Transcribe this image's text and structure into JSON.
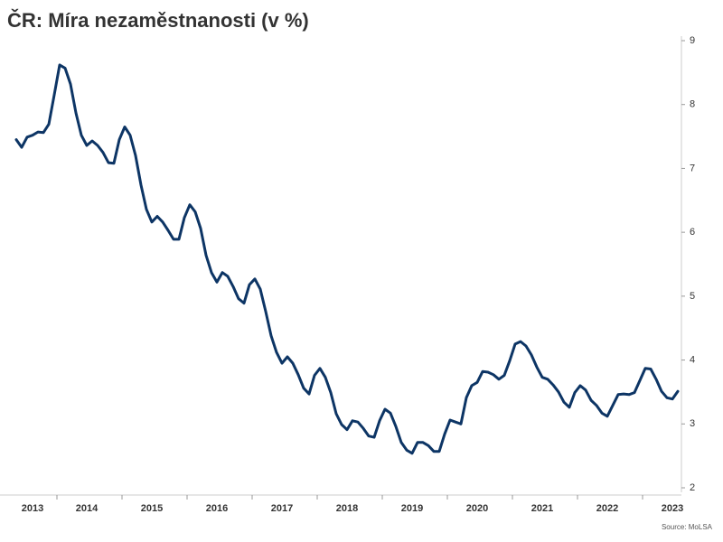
{
  "chart_data": {
    "type": "line",
    "title": "ČR: Míra nezaměstnanosti (v %)",
    "source": "Source: MoLSA",
    "categories": [
      null,
      null,
      null,
      "2013",
      null,
      null,
      null,
      null,
      null,
      null,
      null,
      null,
      null,
      "2014",
      null,
      null,
      null,
      null,
      null,
      null,
      null,
      null,
      null,
      null,
      null,
      "2015",
      null,
      null,
      null,
      null,
      null,
      null,
      null,
      null,
      null,
      null,
      null,
      "2016",
      null,
      null,
      null,
      null,
      null,
      null,
      null,
      null,
      null,
      null,
      null,
      "2017",
      null,
      null,
      null,
      null,
      null,
      null,
      null,
      null,
      null,
      null,
      null,
      "2018",
      null,
      null,
      null,
      null,
      null,
      null,
      null,
      null,
      null,
      null,
      null,
      "2019",
      null,
      null,
      null,
      null,
      null,
      null,
      null,
      null,
      null,
      null,
      null,
      "2020",
      null,
      null,
      null,
      null,
      null,
      null,
      null,
      null,
      null,
      null,
      null,
      "2021",
      null,
      null,
      null,
      null,
      null,
      null,
      null,
      null,
      null,
      null,
      null,
      "2022",
      null,
      null,
      null,
      null,
      null,
      null,
      null,
      null,
      null,
      null,
      null,
      "2023",
      null
    ],
    "series": [
      {
        "name": "Míra nezaměstnanosti",
        "color": "#0d3565",
        "values": [
          7.45,
          7.33,
          7.49,
          7.52,
          7.57,
          7.56,
          7.69,
          8.15,
          8.62,
          8.57,
          8.32,
          7.87,
          7.52,
          7.36,
          7.43,
          7.36,
          7.25,
          7.09,
          7.08,
          7.45,
          7.65,
          7.52,
          7.2,
          6.74,
          6.36,
          6.16,
          6.25,
          6.16,
          6.03,
          5.89,
          5.89,
          6.23,
          6.43,
          6.32,
          6.06,
          5.64,
          5.37,
          5.22,
          5.37,
          5.31,
          5.15,
          4.96,
          4.89,
          5.18,
          5.27,
          5.11,
          4.76,
          4.38,
          4.12,
          3.95,
          4.05,
          3.95,
          3.77,
          3.56,
          3.47,
          3.76,
          3.87,
          3.73,
          3.49,
          3.16,
          2.99,
          2.91,
          3.05,
          3.03,
          2.93,
          2.81,
          2.79,
          3.05,
          3.23,
          3.17,
          2.96,
          2.71,
          2.59,
          2.54,
          2.71,
          2.71,
          2.66,
          2.57,
          2.57,
          2.84,
          3.06,
          3.03,
          3.0,
          3.41,
          3.6,
          3.65,
          3.82,
          3.81,
          3.77,
          3.7,
          3.76,
          3.99,
          4.25,
          4.29,
          4.22,
          4.08,
          3.89,
          3.73,
          3.7,
          3.61,
          3.5,
          3.34,
          3.26,
          3.49,
          3.6,
          3.53,
          3.37,
          3.29,
          3.17,
          3.12,
          3.29,
          3.46,
          3.47,
          3.46,
          3.49,
          3.68,
          3.87,
          3.86,
          3.7,
          3.51,
          3.41,
          3.39,
          3.51
        ]
      }
    ],
    "ylim": [
      2,
      9
    ],
    "yticks": [
      2,
      3,
      4,
      5,
      6,
      7,
      8,
      9
    ],
    "grid": false
  }
}
